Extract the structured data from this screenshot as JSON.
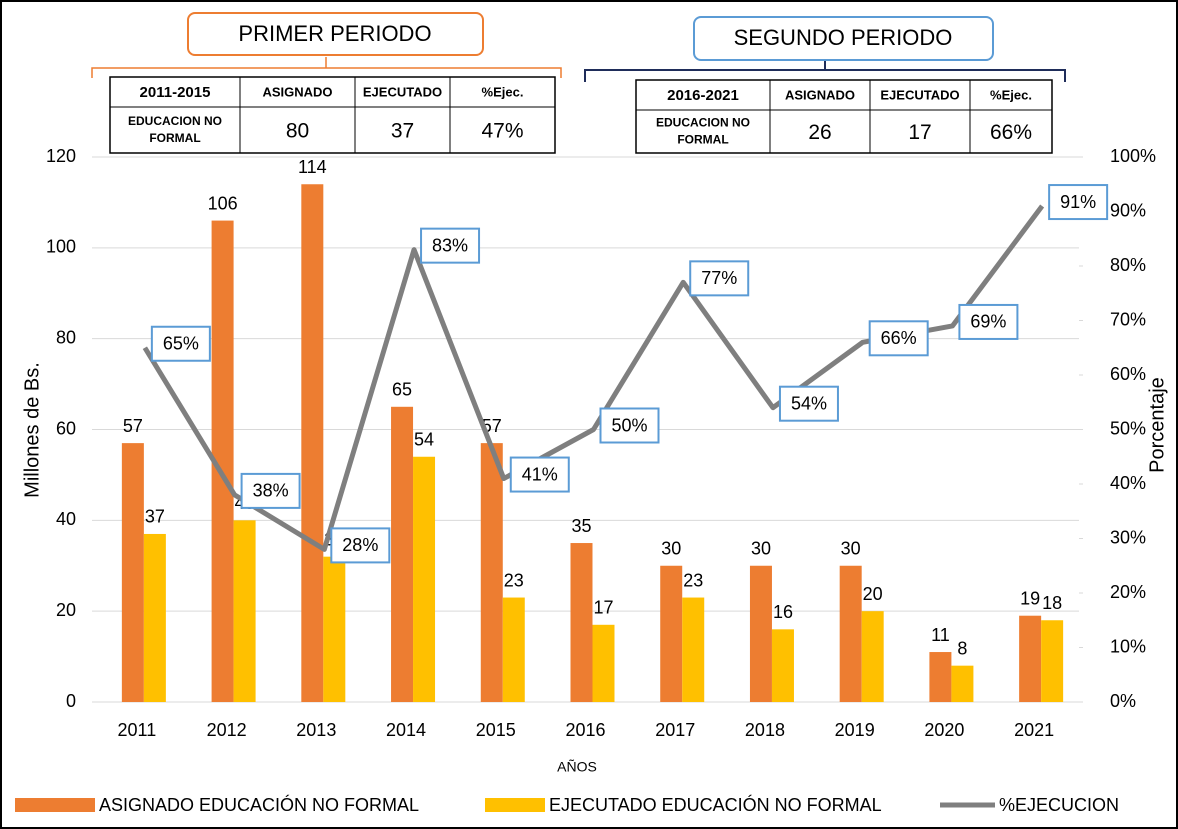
{
  "chart_data": {
    "type": "bar-line",
    "categories": [
      "2011",
      "2012",
      "2013",
      "2014",
      "2015",
      "2016",
      "2017",
      "2018",
      "2019",
      "2020",
      "2021"
    ],
    "series": [
      {
        "name": "ASIGNADO EDUCACIÓN NO FORMAL",
        "color": "#ed7d31",
        "values": [
          57,
          106,
          114,
          65,
          57,
          35,
          30,
          30,
          30,
          11,
          19
        ]
      },
      {
        "name": "EJECUTADO EDUCACIÓN NO FORMAL",
        "color": "#ffc000",
        "values": [
          37,
          40,
          32,
          54,
          23,
          17,
          23,
          16,
          20,
          8,
          18
        ]
      },
      {
        "name": "%EJECUCION",
        "color": "#7f7f7f",
        "axis": "y2",
        "values": [
          65,
          38,
          28,
          83,
          41,
          50,
          77,
          54,
          66,
          69,
          91
        ],
        "value_labels": [
          "65%",
          "38%",
          "28%",
          "83%",
          "41%",
          "50%",
          "77%",
          "54%",
          "66%",
          "69%",
          "91%"
        ]
      }
    ],
    "xlabel": "AÑOS",
    "ylabel": "Millones de Bs.",
    "y2label": "Porcentaje",
    "ylim": [
      0,
      120
    ],
    "yticks": [
      0,
      20,
      40,
      60,
      80,
      100,
      120
    ],
    "y2lim": [
      0,
      100
    ],
    "y2ticks": [
      {
        "value": 0,
        "label": "0%"
      },
      {
        "value": 10,
        "label": "10%"
      },
      {
        "value": 20,
        "label": "20%"
      },
      {
        "value": 30,
        "label": "30%"
      },
      {
        "value": 40,
        "label": "40%"
      },
      {
        "value": 50,
        "label": "50%"
      },
      {
        "value": 60,
        "label": "60%"
      },
      {
        "value": 70,
        "label": "70%"
      },
      {
        "value": 80,
        "label": "80%"
      },
      {
        "value": 90,
        "label": "90%"
      },
      {
        "value": 100,
        "label": "100%"
      }
    ],
    "grid": true,
    "legend": "bottom"
  },
  "periods": [
    {
      "title": "PRIMER PERIODO",
      "header": [
        "2011-2015",
        "ASIGNADO",
        "EJECUTADO",
        "%Ejec."
      ],
      "row": [
        "EDUCACION NO FORMAL",
        "80",
        "37",
        "47%"
      ]
    },
    {
      "title": "SEGUNDO PERIODO",
      "header": [
        "2016-2021",
        "ASIGNADO",
        "EJECUTADO",
        "%Ejec."
      ],
      "row": [
        "EDUCACION NO FORMAL",
        "26",
        "17",
        "66%"
      ]
    }
  ]
}
